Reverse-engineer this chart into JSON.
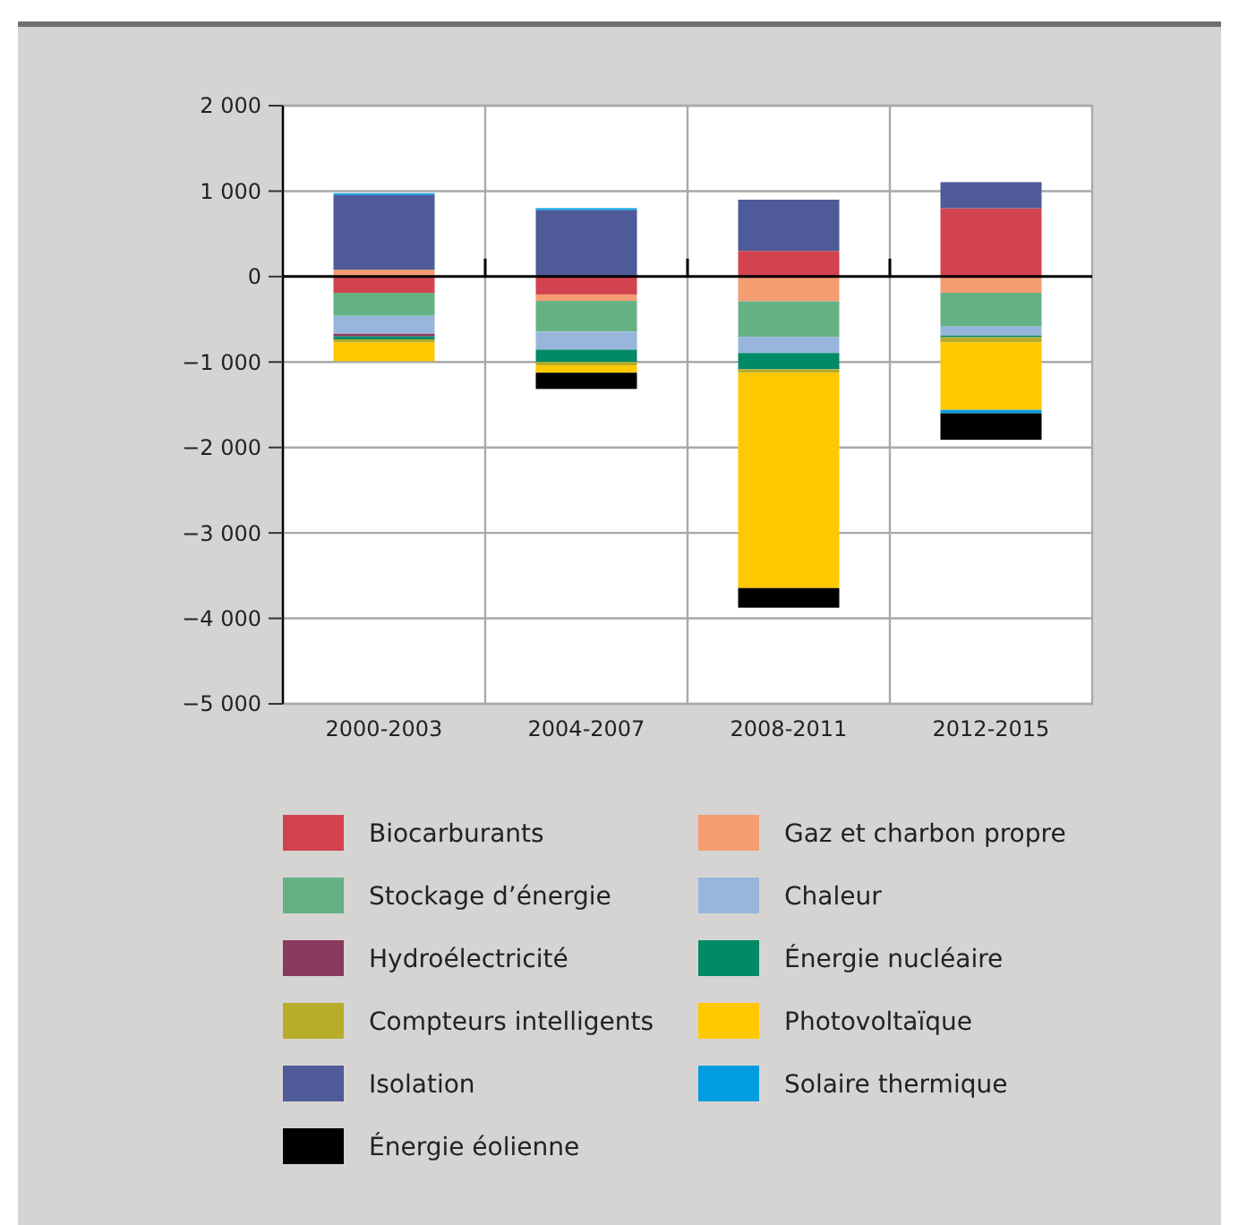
{
  "chart_data": {
    "type": "bar",
    "stacked": true,
    "categories": [
      "2000-2003",
      "2004-2007",
      "2008-2011",
      "2012-2015"
    ],
    "ylim": [
      -5000,
      2000
    ],
    "yticks": [
      {
        "value": -5000,
        "label": "−5 000"
      },
      {
        "value": -4000,
        "label": "−4 000"
      },
      {
        "value": -3000,
        "label": "−3 000"
      },
      {
        "value": -2000,
        "label": "−2 000"
      },
      {
        "value": -1000,
        "label": "−1 000"
      },
      0,
      {
        "value": 1000,
        "label": "1 000"
      },
      {
        "value": 2000,
        "label": "2 000"
      }
    ],
    "grid": true,
    "legend": "bottom",
    "series": [
      {
        "name": "Biocarburants",
        "color": "#d2434f",
        "values": [
          -190,
          -210,
          300,
          800
        ]
      },
      {
        "name": "Gaz et charbon propre",
        "color": "#f59c72",
        "values": [
          80,
          -75,
          -290,
          -190
        ]
      },
      {
        "name": "Stockage d’énergie",
        "color": "#65b184",
        "values": [
          -270,
          -360,
          -415,
          -395
        ]
      },
      {
        "name": "Chaleur",
        "color": "#98b6dc",
        "values": [
          -210,
          -210,
          -190,
          -105
        ]
      },
      {
        "name": "Hydroélectricité",
        "color": "#8a3a5e",
        "values": [
          -30,
          null,
          null,
          null
        ]
      },
      {
        "name": "Énergie nucléaire",
        "color": "#008a65",
        "values": [
          -35,
          -145,
          -190,
          -20
        ]
      },
      {
        "name": "Compteurs intelligents",
        "color": "#b8ac2a",
        "values": [
          -35,
          -40,
          -40,
          -60
        ]
      },
      {
        "name": "Photovoltaïque",
        "color": "#ffc800",
        "values": [
          -220,
          -85,
          -2520,
          -790
        ]
      },
      {
        "name": "Isolation",
        "color": "#4f5a98",
        "values": [
          875,
          780,
          600,
          305
        ]
      },
      {
        "name": "Solaire thermique",
        "color": "#009ee0",
        "values": [
          20,
          20,
          null,
          -40
        ]
      },
      {
        "name": "Énergie éolienne",
        "color": "#000000",
        "values": [
          null,
          -190,
          -230,
          -310
        ]
      }
    ]
  }
}
